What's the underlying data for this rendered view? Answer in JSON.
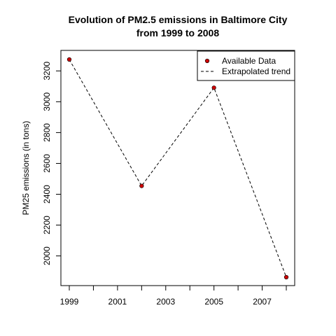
{
  "chart_data": {
    "type": "line",
    "title_line1": "Evolution of PM2.5 emissions in Baltimore City",
    "title_line2": "from 1999 to 2008",
    "xlabel": "",
    "ylabel": "PM25 emissions (in tons)",
    "x": [
      1999,
      2002,
      2005,
      2008
    ],
    "xlim": [
      1999,
      2008
    ],
    "ylim": [
      1862,
      3274
    ],
    "x_ticks": [
      1999,
      2000,
      2001,
      2002,
      2003,
      2004,
      2005,
      2006,
      2007,
      2008
    ],
    "x_tick_labels": [
      "1999",
      "",
      "2001",
      "",
      "2003",
      "",
      "2005",
      "",
      "2007",
      ""
    ],
    "y_ticks": [
      2000,
      2200,
      2400,
      2600,
      2800,
      3000,
      3200
    ],
    "y_tick_labels": [
      "2000",
      "2200",
      "2400",
      "2600",
      "2800",
      "3000",
      "3200"
    ],
    "series": [
      {
        "name": "Available Data",
        "style": "points",
        "color": "#cc0000",
        "values": [
          3274,
          2454,
          3091,
          1862
        ]
      },
      {
        "name": "Extrapolated trend",
        "style": "dashed-line",
        "color": "#000000",
        "values": [
          3274,
          2454,
          3091,
          1862
        ]
      }
    ],
    "legend_position": "top-right",
    "grid": false
  }
}
